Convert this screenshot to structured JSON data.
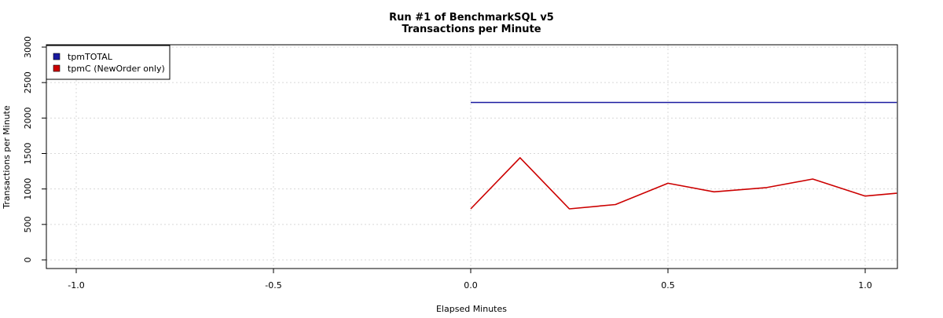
{
  "chart_data": {
    "type": "line",
    "title": [
      "Run #1 of BenchmarkSQL v5",
      "Transactions per Minute"
    ],
    "xlabel": "Elapsed Minutes",
    "ylabel": "Transactions per Minute",
    "xlim": [
      -1.0,
      1.08
    ],
    "ylim": [
      0,
      3000
    ],
    "x_ticks": [
      -1.0,
      -0.5,
      0.0,
      0.5,
      1.0
    ],
    "x_tick_labels": [
      "-1.0",
      "-0.5",
      "0.0",
      "0.5",
      "1.0"
    ],
    "y_ticks": [
      0,
      500,
      1000,
      1500,
      2000,
      2500,
      3000
    ],
    "y_tick_labels": [
      "0",
      "500",
      "1000",
      "1500",
      "2000",
      "2500",
      "3000"
    ],
    "grid": true,
    "legend": {
      "placement": "top-left",
      "entries": [
        "tpmTOTAL",
        "tpmC (NewOrder only)"
      ]
    },
    "series": [
      {
        "name": "tpmTOTAL",
        "color": "#1a1aa0",
        "x": [
          0.0,
          1.08
        ],
        "y": [
          2220,
          2220
        ]
      },
      {
        "name": "tpmC (NewOrder only)",
        "color": "#cc0000",
        "x": [
          0.0,
          0.125,
          0.25,
          0.367,
          0.5,
          0.617,
          0.75,
          0.867,
          1.0,
          1.08
        ],
        "y": [
          720,
          1440,
          720,
          780,
          1080,
          960,
          1020,
          1140,
          900,
          940
        ]
      }
    ]
  }
}
